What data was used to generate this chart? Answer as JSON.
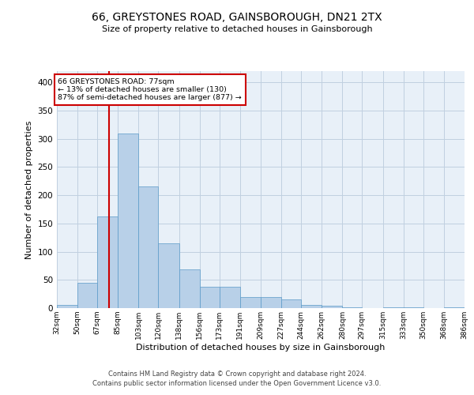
{
  "title": "66, GREYSTONES ROAD, GAINSBOROUGH, DN21 2TX",
  "subtitle": "Size of property relative to detached houses in Gainsborough",
  "xlabel": "Distribution of detached houses by size in Gainsborough",
  "ylabel": "Number of detached properties",
  "footer_line1": "Contains HM Land Registry data © Crown copyright and database right 2024.",
  "footer_line2": "Contains public sector information licensed under the Open Government Licence v3.0.",
  "bar_edges": [
    32,
    50,
    67,
    85,
    103,
    120,
    138,
    156,
    173,
    191,
    209,
    227,
    244,
    262,
    280,
    297,
    315,
    333,
    350,
    368,
    386
  ],
  "bar_heights": [
    5,
    45,
    162,
    310,
    215,
    115,
    68,
    38,
    38,
    20,
    20,
    16,
    6,
    4,
    1,
    0,
    2,
    1,
    0,
    2
  ],
  "bar_color": "#B8D0E8",
  "bar_edge_color": "#5A9AC8",
  "property_size": 77,
  "red_line_color": "#CC0000",
  "annotation_text_line1": "66 GREYSTONES ROAD: 77sqm",
  "annotation_text_line2": "← 13% of detached houses are smaller (130)",
  "annotation_text_line3": "87% of semi-detached houses are larger (877) →",
  "annotation_box_color": "#CC0000",
  "background_color": "#FFFFFF",
  "plot_bg_color": "#E8F0F8",
  "grid_color": "#C0D0E0",
  "ylim": [
    0,
    420
  ],
  "yticks": [
    0,
    50,
    100,
    150,
    200,
    250,
    300,
    350,
    400
  ]
}
